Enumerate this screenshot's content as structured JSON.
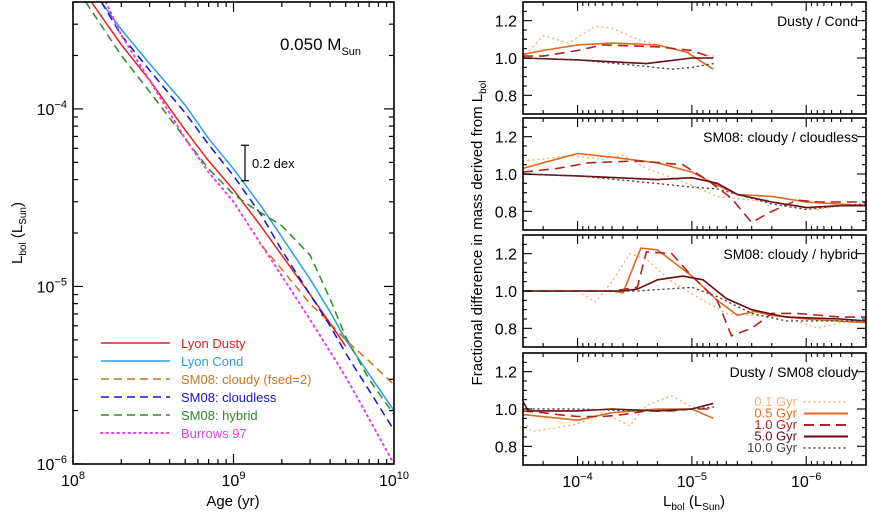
{
  "chart_data": [
    {
      "id": "left",
      "type": "line",
      "title": "",
      "annotation": "0.050 M",
      "annotation_sub": "Sun",
      "scale_bar_label": "0.2 dex",
      "scale_bar_dex": 0.2,
      "xlabel": "Age (yr)",
      "ylabel": "L",
      "ylabel_sub": "bol",
      "ylabel_unit": "L",
      "ylabel_unit_sub": "Sun",
      "xscale": "log",
      "yscale": "log",
      "xlim": [
        100000000.0,
        10000000000.0
      ],
      "ylim": [
        1e-06,
        0.0004
      ],
      "xticks": [
        {
          "value": 100000000.0,
          "base": "10",
          "exp": "8"
        },
        {
          "value": 1000000000.0,
          "base": "10",
          "exp": "9"
        },
        {
          "value": 10000000000.0,
          "base": "10",
          "exp": "10"
        }
      ],
      "yticks": [
        {
          "value": 0.0001,
          "base": "10",
          "exp": "−4"
        },
        {
          "value": 1e-05,
          "base": "10",
          "exp": "−5"
        },
        {
          "value": 1e-06,
          "base": "10",
          "exp": "−6"
        }
      ],
      "legend_position": "lower-left",
      "series": [
        {
          "name": "Lyon Dusty",
          "color": "#e0201e",
          "style": "solid",
          "x": [
            130000000.0,
            200000000.0,
            300000000.0,
            500000000.0,
            700000000.0,
            1000000000.0,
            1500000000.0,
            2000000000.0,
            3000000000.0,
            4000000000.0,
            5000000000.0
          ],
          "y": [
            0.0004,
            0.00023,
            0.000145,
            7.6e-05,
            5.1e-05,
            3.5e-05,
            2.15e-05,
            1.5e-05,
            9e-06,
            6.2e-06,
            4.6e-06
          ]
        },
        {
          "name": "Lyon Cond",
          "color": "#2a9ee0",
          "style": "solid",
          "x": [
            150000000.0,
            200000000.0,
            300000000.0,
            500000000.0,
            700000000.0,
            1000000000.0,
            1500000000.0,
            2000000000.0,
            3000000000.0,
            4000000000.0,
            5000000000.0,
            7000000000.0,
            10000000000.0
          ],
          "y": [
            0.0004,
            0.00028,
            0.00018,
            0.000105,
            6.8e-05,
            4.6e-05,
            2.8e-05,
            1.9e-05,
            1.1e-05,
            7.2e-06,
            5e-06,
            3.2e-06,
            2e-06
          ]
        },
        {
          "name": "SM08: cloudy (fsed=2)",
          "color": "#c8741e",
          "style": "dashed",
          "x": [
            1500000000.0,
            2000000000.0,
            3000000000.0,
            4000000000.0,
            5000000000.0,
            7000000000.0,
            10000000000.0
          ],
          "y": [
            1.7e-05,
            1.25e-05,
            8e-06,
            6.2e-06,
            5e-06,
            3.8e-06,
            2.8e-06
          ]
        },
        {
          "name": "SM08: cloudless",
          "color": "#1414c8",
          "style": "dashed",
          "x": [
            150000000.0,
            200000000.0,
            300000000.0,
            500000000.0,
            700000000.0,
            1000000000.0,
            1500000000.0,
            2000000000.0,
            3000000000.0,
            4000000000.0,
            5000000000.0,
            7000000000.0,
            10000000000.0
          ],
          "y": [
            0.0004,
            0.00026,
            0.000165,
            9.5e-05,
            6.3e-05,
            4.2e-05,
            2.5e-05,
            1.6e-05,
            9e-06,
            6e-06,
            4.2e-06,
            2.6e-06,
            1.55e-06
          ]
        },
        {
          "name": "SM08: hybrid",
          "color": "#2e8a26",
          "style": "dashed",
          "x": [
            120000000.0,
            200000000.0,
            300000000.0,
            500000000.0,
            700000000.0,
            1000000000.0,
            1300000000.0,
            2000000000.0,
            3000000000.0,
            4000000000.0,
            5000000000.0,
            7000000000.0,
            10000000000.0
          ],
          "y": [
            0.0004,
            0.0002,
            0.000125,
            6.8e-05,
            4.6e-05,
            3.3e-05,
            2.8e-05,
            2.2e-05,
            1.5e-05,
            8.5e-06,
            5.2e-06,
            3e-06,
            1.9e-06
          ]
        },
        {
          "name": "Burrows 97",
          "color": "#e63ee6",
          "style": "dotted",
          "x": [
            160000000.0,
            200000000.0,
            300000000.0,
            500000000.0,
            700000000.0,
            1000000000.0,
            1500000000.0,
            2000000000.0,
            3000000000.0,
            4000000000.0,
            5000000000.0,
            7000000000.0,
            10000000000.0
          ],
          "y": [
            0.0004,
            0.00026,
            0.000145,
            6.8e-05,
            4.4e-05,
            3e-05,
            1.7e-05,
            1.15e-05,
            6.5e-06,
            4.3e-06,
            3.1e-06,
            1.8e-06,
            1e-06
          ]
        }
      ]
    },
    {
      "id": "right",
      "type": "line",
      "ylabel": "Fractional difference in mass derived from L",
      "ylabel_sub": "bol",
      "xlabel": "L",
      "xlabel_sub": "bol",
      "xlabel_unit": "L",
      "xlabel_unit_sub": "Sun",
      "xscale": "log",
      "xreversed": true,
      "xlim": [
        0.0003,
        3e-07
      ],
      "ylim": [
        0.7,
        1.3
      ],
      "xticks": [
        {
          "value": 0.0001,
          "base": "10",
          "exp": "−4"
        },
        {
          "value": 1e-05,
          "base": "10",
          "exp": "−5"
        },
        {
          "value": 1e-06,
          "base": "10",
          "exp": "−6"
        }
      ],
      "yticks": [
        {
          "value": 0.8,
          "label": "0.8"
        },
        {
          "value": 1.0,
          "label": "1.0"
        },
        {
          "value": 1.2,
          "label": "1.2"
        }
      ],
      "legend_position": "lower-right of bottom panel",
      "legend": [
        {
          "name": "0.1 Gyr",
          "color": "#f5b27a",
          "style": "dotted"
        },
        {
          "name": "0.5 Gyr",
          "color": "#e06a1e",
          "style": "solid"
        },
        {
          "name": "1.0 Gyr",
          "color": "#b4241e",
          "style": "dashed"
        },
        {
          "name": "5.0 Gyr",
          "color": "#6e0a10",
          "style": "solid"
        },
        {
          "name": "10.0 Gyr",
          "color": "#444444",
          "style": "dotted"
        }
      ],
      "panels": [
        {
          "label": "Dusty / Cond",
          "series": [
            {
              "name": "0.1 Gyr",
              "x": [
                0.0003,
                0.0002,
                0.00012,
                7e-05,
                5e-05,
                3e-05,
                1.5e-05,
                1e-05,
                6.5e-06
              ],
              "y": [
                1.0,
                1.12,
                1.08,
                1.17,
                1.16,
                1.1,
                1.05,
                1.03,
                1.01
              ]
            },
            {
              "name": "0.5 Gyr",
              "x": [
                0.0003,
                0.0002,
                0.0001,
                5e-05,
                2e-05,
                1.1e-05,
                6.5e-06
              ],
              "y": [
                1.02,
                1.04,
                1.07,
                1.08,
                1.07,
                1.03,
                0.94
              ]
            },
            {
              "name": "1.0 Gyr",
              "x": [
                0.0003,
                0.0002,
                0.0001,
                6e-05,
                2e-05,
                1e-05,
                6.5e-06
              ],
              "y": [
                1.01,
                1.01,
                1.04,
                1.07,
                1.06,
                1.04,
                1.0
              ]
            },
            {
              "name": "5.0 Gyr",
              "x": [
                0.0003,
                0.0001,
                2.5e-05,
                1e-05,
                6.5e-06
              ],
              "y": [
                1.0,
                0.99,
                0.97,
                1.0,
                1.0
              ]
            },
            {
              "name": "10.0 Gyr",
              "x": [
                0.0003,
                0.0001,
                3e-05,
                1.5e-05,
                1e-05,
                6.5e-06
              ],
              "y": [
                1.0,
                0.99,
                0.96,
                0.94,
                0.95,
                0.97
              ]
            }
          ]
        },
        {
          "label": "SM08: cloudy / cloudless",
          "series": [
            {
              "name": "0.1 Gyr",
              "x": [
                0.0003,
                0.0002,
                0.00012,
                6e-05,
                4e-05,
                2.5e-05,
                1.2e-05,
                6e-06,
                3e-06,
                1.2e-06,
                8e-07,
                5e-07,
                3e-07
              ],
              "y": [
                1.07,
                1.08,
                1.1,
                1.08,
                1.1,
                1.03,
                0.96,
                0.88,
                0.86,
                0.83,
                0.81,
                0.83,
                0.84
              ]
            },
            {
              "name": "0.5 Gyr",
              "x": [
                0.0003,
                0.0002,
                0.0001,
                5e-05,
                2e-05,
                1e-05,
                6e-06,
                4e-06,
                2e-06,
                1e-06,
                3e-07
              ],
              "y": [
                1.03,
                1.06,
                1.11,
                1.09,
                1.06,
                1.01,
                0.94,
                0.89,
                0.88,
                0.85,
                0.83
              ]
            },
            {
              "name": "1.0 Gyr",
              "x": [
                0.0003,
                0.00015,
                8e-05,
                3e-05,
                1.2e-05,
                7e-06,
                4.5e-06,
                3e-06,
                2e-06,
                1.2e-06,
                8e-07,
                5e-07,
                3e-07
              ],
              "y": [
                1.01,
                1.03,
                1.06,
                1.07,
                1.05,
                0.96,
                0.87,
                0.74,
                0.8,
                0.86,
                0.85,
                0.85,
                0.85
              ]
            },
            {
              "name": "5.0 Gyr",
              "x": [
                0.0003,
                0.0001,
                2e-05,
                1e-05,
                6e-06,
                4e-06,
                2e-06,
                1e-06,
                5e-07,
                3e-07
              ],
              "y": [
                1.0,
                0.99,
                0.97,
                0.98,
                0.95,
                0.89,
                0.85,
                0.82,
                0.83,
                0.83
              ]
            },
            {
              "name": "10.0 Gyr",
              "x": [
                0.0003,
                0.0001,
                3e-05,
                1e-05,
                6e-06,
                4e-06,
                2e-06,
                1e-06,
                5e-07,
                3e-07
              ],
              "y": [
                1.0,
                0.99,
                0.96,
                0.93,
                0.92,
                0.89,
                0.84,
                0.81,
                0.83,
                0.84
              ]
            }
          ]
        },
        {
          "label": "SM08: cloudy / hybrid",
          "series": [
            {
              "name": "0.1 Gyr",
              "x": [
                0.0003,
                0.0001,
                7e-05,
                5e-05,
                3.5e-05,
                2.5e-05,
                1.5e-05,
                8e-06,
                5e-06,
                3e-06,
                1.5e-06,
                8e-07,
                5e-07,
                3e-07
              ],
              "y": [
                1.0,
                1.0,
                0.94,
                1.05,
                1.2,
                1.17,
                1.05,
                0.95,
                0.88,
                0.87,
                0.86,
                0.8,
                0.83,
                0.84
              ]
            },
            {
              "name": "0.5 Gyr",
              "x": [
                0.0003,
                5e-05,
                4e-05,
                2.8e-05,
                2e-05,
                1e-05,
                6e-06,
                4e-06,
                2.8e-06,
                2e-06,
                1e-06,
                3e-07
              ],
              "y": [
                1.0,
                1.0,
                0.99,
                1.23,
                1.22,
                1.08,
                0.95,
                0.87,
                0.89,
                0.87,
                0.85,
                0.83
              ]
            },
            {
              "name": "1.0 Gyr",
              "x": [
                0.0003,
                5e-05,
                3e-05,
                2.5e-05,
                1.5e-05,
                1e-05,
                6e-06,
                4.5e-06,
                3e-06,
                2e-06,
                1.2e-06,
                5e-07,
                3e-07
              ],
              "y": [
                1.0,
                1.0,
                1.02,
                1.21,
                1.2,
                1.08,
                0.95,
                0.76,
                0.8,
                0.88,
                0.88,
                0.86,
                0.86
              ]
            },
            {
              "name": "5.0 Gyr",
              "x": [
                0.0003,
                4e-05,
                3e-05,
                2e-05,
                1.2e-05,
                8e-06,
                5e-06,
                3e-06,
                1.5e-06,
                5e-07,
                3e-07
              ],
              "y": [
                1.0,
                1.0,
                1.01,
                1.06,
                1.08,
                1.06,
                0.96,
                0.9,
                0.86,
                0.85,
                0.84
              ]
            },
            {
              "name": "10.0 Gyr",
              "x": [
                0.0003,
                3e-05,
                1e-05,
                6e-06,
                3e-06,
                1.5e-06,
                6e-07,
                3e-07
              ],
              "y": [
                1.0,
                1.0,
                1.02,
                0.97,
                0.88,
                0.84,
                0.84,
                0.84
              ]
            }
          ]
        },
        {
          "label": "Dusty / SM08 cloudy",
          "series": [
            {
              "name": "0.1 Gyr",
              "x": [
                0.0003,
                0.00025,
                0.00015,
                0.0001,
                6e-05,
                3.5e-05,
                2.5e-05,
                1.5e-05,
                1e-05,
                6.5e-06
              ],
              "y": [
                0.93,
                0.88,
                0.9,
                0.92,
                0.98,
                0.91,
                1.02,
                1.07,
                1.01,
                1.0
              ]
            },
            {
              "name": "0.5 Gyr",
              "x": [
                0.0003,
                0.0001,
                5e-05,
                2e-05,
                1e-05,
                6.5e-06
              ],
              "y": [
                0.97,
                0.94,
                0.98,
                1.0,
                1.0,
                0.95
              ]
            },
            {
              "name": "1.0 Gyr",
              "x": [
                0.0003,
                0.0002,
                0.00015,
                0.0001,
                6e-05,
                4e-05,
                2.5e-05,
                1.5e-05,
                1e-05,
                6.5e-06
              ],
              "y": [
                0.99,
                0.98,
                0.97,
                0.96,
                0.96,
                0.97,
                0.99,
                0.99,
                1.0,
                1.0
              ]
            },
            {
              "name": "5.0 Gyr",
              "x": [
                0.0003,
                0.00027,
                0.0001,
                5e-05,
                2e-05,
                1e-05,
                6.5e-06
              ],
              "y": [
                1.04,
                0.99,
                0.99,
                1.0,
                0.99,
                1.0,
                1.03
              ]
            },
            {
              "name": "10.0 Gyr",
              "x": [
                0.0003,
                0.0001,
                3e-05,
                1e-05,
                6.5e-06
              ],
              "y": [
                1.0,
                1.0,
                0.99,
                1.0,
                1.01
              ]
            }
          ]
        }
      ]
    }
  ]
}
